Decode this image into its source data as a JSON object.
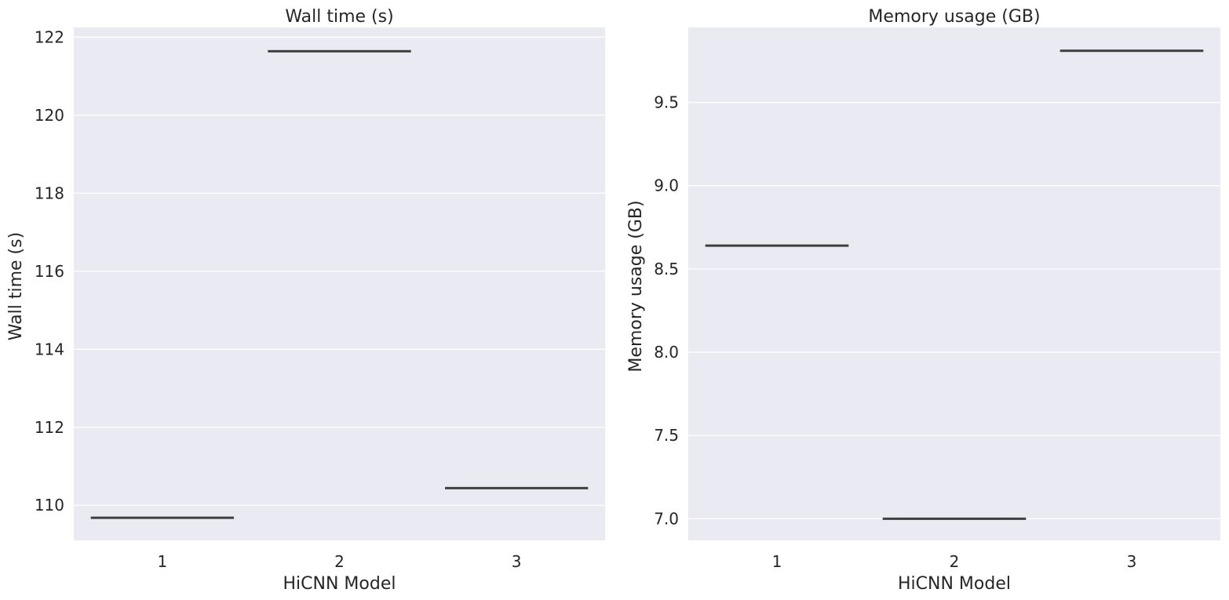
{
  "chart_data": [
    {
      "type": "box",
      "title": "Wall time (s)",
      "xlabel": "HiCNN Model",
      "ylabel": "Wall time (s)",
      "categories": [
        "1",
        "2",
        "3"
      ],
      "values": [
        109.68,
        121.64,
        110.44
      ],
      "ylim": [
        109.1,
        122.25
      ],
      "yticks": [
        110,
        112,
        114,
        116,
        118,
        120,
        122
      ],
      "ytick_labels": [
        "110",
        "112",
        "114",
        "116",
        "118",
        "120",
        "122"
      ],
      "grid": true
    },
    {
      "type": "box",
      "title": "Memory usage (GB)",
      "xlabel": "HiCNN Model",
      "ylabel": "Memory usage (GB)",
      "categories": [
        "1",
        "2",
        "3"
      ],
      "values": [
        8.64,
        7.0,
        9.81
      ],
      "ylim": [
        6.87,
        9.95
      ],
      "yticks": [
        7.0,
        7.5,
        8.0,
        8.5,
        9.0,
        9.5
      ],
      "ytick_labels": [
        "7.0",
        "7.5",
        "8.0",
        "8.5",
        "9.0",
        "9.5"
      ],
      "grid": true
    }
  ],
  "colors": {
    "panel_bg": "#eaeaf2",
    "grid": "#ffffff",
    "box": "#3f3f3f"
  }
}
